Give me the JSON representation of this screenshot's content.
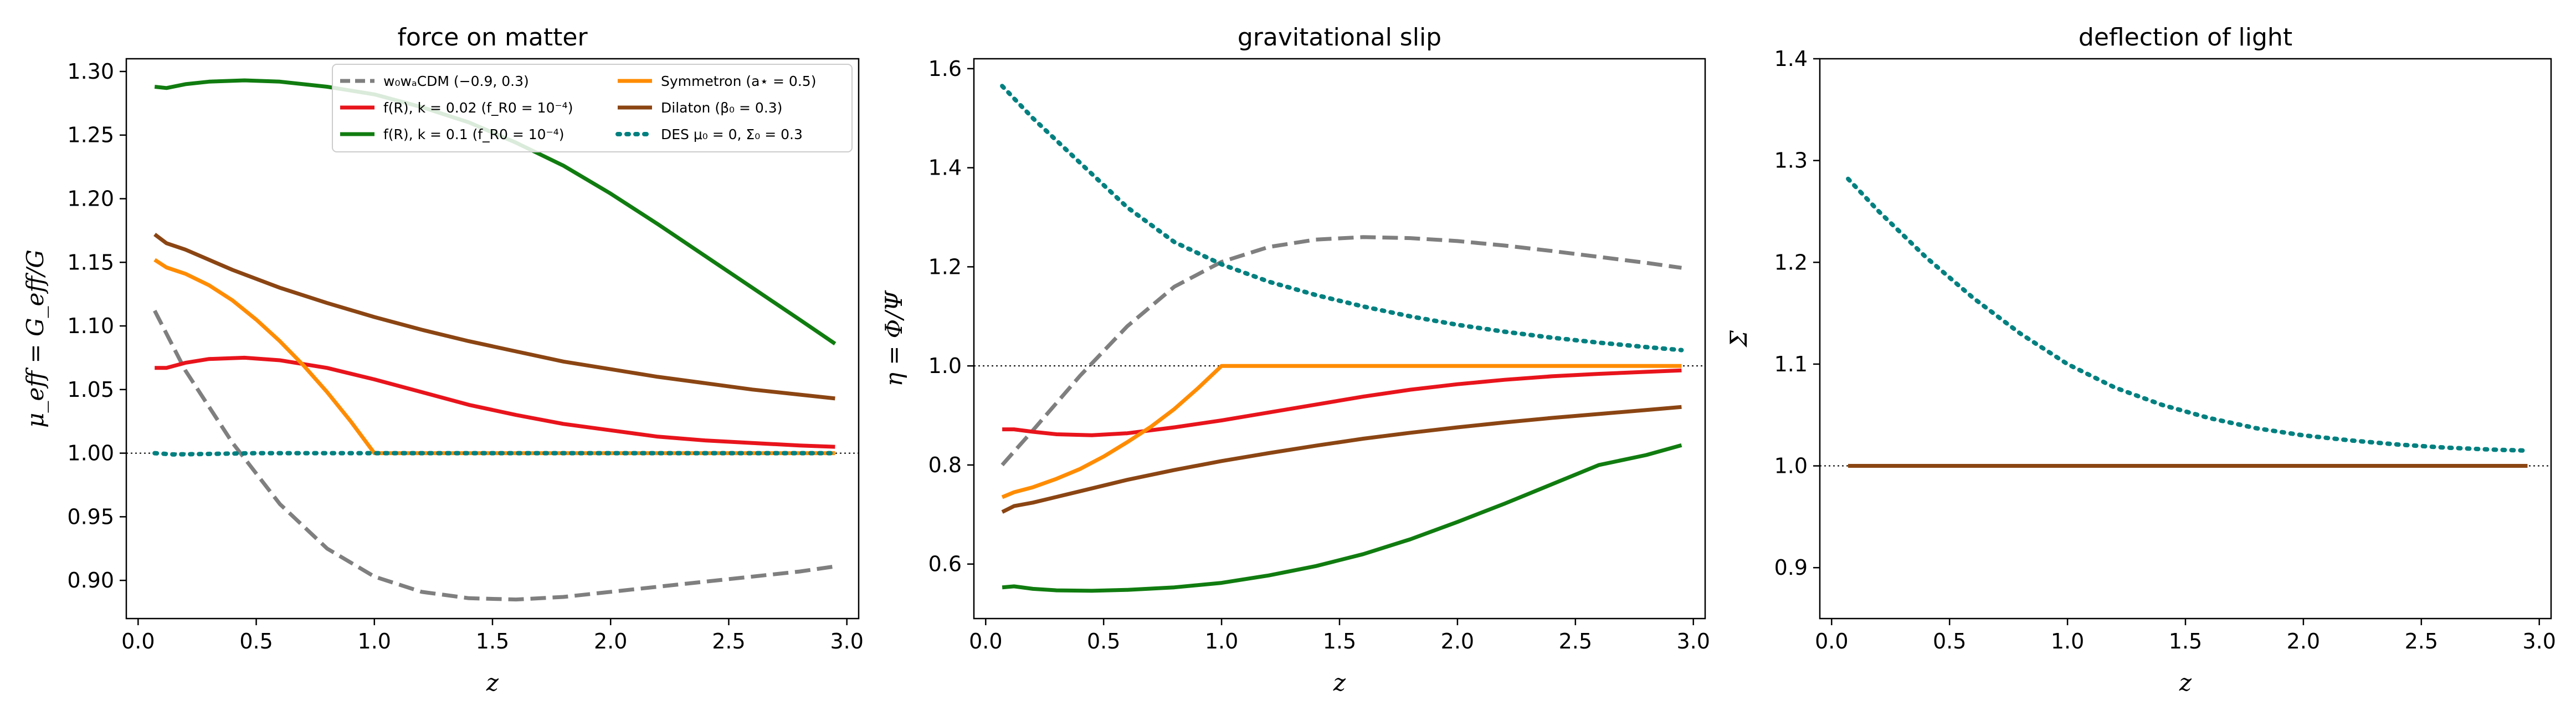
{
  "chart_data": [
    {
      "type": "line",
      "title": "force on matter",
      "xlabel": "z",
      "ylabel": "μ_eff = G_eff/G",
      "xlim": [
        -0.05,
        3.05
      ],
      "ylim": [
        0.87,
        1.31
      ],
      "xticks": [
        "0.0",
        "0.5",
        "1.0",
        "1.5",
        "2.0",
        "2.5",
        "3.0"
      ],
      "yticks": [
        "0.90",
        "0.95",
        "1.00",
        "1.05",
        "1.10",
        "1.15",
        "1.20",
        "1.25",
        "1.30"
      ],
      "reference_line": 1.0,
      "legend_placement": "top-right",
      "legend": [
        "w₀wₐCDM (−0.9, 0.3)",
        "f(R), k = 0.02 (f_R0 = 10⁻⁴)",
        "f(R), k = 0.1 (f_R0 = 10⁻⁴)",
        "Symmetron (a⋆ = 0.5)",
        "Dilaton (β₀ = 0.3)",
        "DES μ₀ = 0, Σ₀ = 0.3"
      ],
      "series": [
        {
          "name": "w₀wₐCDM (−0.9, 0.3)",
          "color": "#7f7f7f",
          "style": "dashed",
          "x": [
            0.07,
            0.2,
            0.4,
            0.6,
            0.8,
            1.0,
            1.2,
            1.4,
            1.6,
            1.8,
            2.0,
            2.2,
            2.4,
            2.6,
            2.8,
            2.95
          ],
          "y": [
            1.112,
            1.065,
            1.008,
            0.96,
            0.925,
            0.903,
            0.891,
            0.886,
            0.885,
            0.887,
            0.891,
            0.895,
            0.899,
            0.903,
            0.907,
            0.911
          ]
        },
        {
          "name": "f(R), k = 0.02 (f_R0 = 10⁻⁴)",
          "color": "#e8141c",
          "style": "solid",
          "x": [
            0.07,
            0.12,
            0.2,
            0.3,
            0.45,
            0.6,
            0.8,
            1.0,
            1.2,
            1.4,
            1.6,
            1.8,
            2.0,
            2.2,
            2.4,
            2.6,
            2.8,
            2.95
          ],
          "y": [
            1.067,
            1.067,
            1.071,
            1.074,
            1.075,
            1.073,
            1.067,
            1.058,
            1.048,
            1.038,
            1.03,
            1.023,
            1.018,
            1.013,
            1.01,
            1.008,
            1.006,
            1.005
          ]
        },
        {
          "name": "f(R), k = 0.1 (f_R0 = 10⁻⁴)",
          "color": "#107c10",
          "style": "solid",
          "x": [
            0.07,
            0.12,
            0.2,
            0.3,
            0.45,
            0.6,
            0.8,
            1.0,
            1.2,
            1.4,
            1.6,
            1.8,
            2.0,
            2.2,
            2.4,
            2.6,
            2.8,
            2.95
          ],
          "y": [
            1.288,
            1.287,
            1.29,
            1.292,
            1.293,
            1.292,
            1.288,
            1.282,
            1.272,
            1.26,
            1.244,
            1.226,
            1.204,
            1.18,
            1.155,
            1.13,
            1.105,
            1.086
          ]
        },
        {
          "name": "Symmetron (a⋆ = 0.5)",
          "color": "#ff8c00",
          "style": "solid",
          "x": [
            0.07,
            0.12,
            0.2,
            0.3,
            0.4,
            0.5,
            0.6,
            0.7,
            0.8,
            0.9,
            1.0,
            1.5,
            2.0,
            2.5,
            2.95
          ],
          "y": [
            1.152,
            1.146,
            1.141,
            1.132,
            1.12,
            1.105,
            1.088,
            1.069,
            1.048,
            1.025,
            1.0,
            1.0,
            1.0,
            1.0,
            1.0
          ]
        },
        {
          "name": "Dilaton (β₀ = 0.3)",
          "color": "#8b4513",
          "style": "solid",
          "x": [
            0.07,
            0.12,
            0.2,
            0.4,
            0.6,
            0.8,
            1.0,
            1.2,
            1.4,
            1.6,
            1.8,
            2.0,
            2.2,
            2.4,
            2.6,
            2.8,
            2.95
          ],
          "y": [
            1.172,
            1.165,
            1.16,
            1.144,
            1.13,
            1.118,
            1.107,
            1.097,
            1.088,
            1.08,
            1.072,
            1.066,
            1.06,
            1.055,
            1.05,
            1.046,
            1.043
          ]
        },
        {
          "name": "DES μ₀ = 0, Σ₀ = 0.3",
          "color": "#008080",
          "style": "dotted",
          "x": [
            0.07,
            0.15,
            0.5,
            1.0,
            1.5,
            2.0,
            2.5,
            2.95
          ],
          "y": [
            1.0,
            0.999,
            1.0,
            1.0,
            1.0,
            1.0,
            1.0,
            1.0
          ]
        }
      ]
    },
    {
      "type": "line",
      "title": "gravitational slip",
      "xlabel": "z",
      "ylabel": "η = Φ/Ψ",
      "xlim": [
        -0.05,
        3.05
      ],
      "ylim": [
        0.49,
        1.62
      ],
      "xticks": [
        "0.0",
        "0.5",
        "1.0",
        "1.5",
        "2.0",
        "2.5",
        "3.0"
      ],
      "yticks": [
        "0.6",
        "0.8",
        "1.0",
        "1.2",
        "1.4",
        "1.6"
      ],
      "reference_line": 1.0,
      "series": [
        {
          "name": "w₀wₐCDM (−0.9, 0.3)",
          "color": "#7f7f7f",
          "style": "dashed",
          "x": [
            0.07,
            0.2,
            0.4,
            0.6,
            0.8,
            1.0,
            1.2,
            1.4,
            1.6,
            1.8,
            2.0,
            2.2,
            2.4,
            2.6,
            2.8,
            2.95
          ],
          "y": [
            0.8,
            0.87,
            0.98,
            1.08,
            1.16,
            1.21,
            1.24,
            1.255,
            1.26,
            1.258,
            1.252,
            1.243,
            1.232,
            1.22,
            1.208,
            1.198
          ]
        },
        {
          "name": "f(R), k = 0.02 (f_R0 = 10⁻⁴)",
          "color": "#e8141c",
          "style": "solid",
          "x": [
            0.07,
            0.12,
            0.2,
            0.3,
            0.45,
            0.6,
            0.8,
            1.0,
            1.2,
            1.4,
            1.6,
            1.8,
            2.0,
            2.2,
            2.4,
            2.6,
            2.8,
            2.95
          ],
          "y": [
            0.872,
            0.872,
            0.867,
            0.862,
            0.86,
            0.864,
            0.876,
            0.89,
            0.906,
            0.922,
            0.938,
            0.952,
            0.963,
            0.972,
            0.979,
            0.984,
            0.988,
            0.991
          ]
        },
        {
          "name": "f(R), k = 0.1 (f_R0 = 10⁻⁴)",
          "color": "#107c10",
          "style": "solid",
          "x": [
            0.07,
            0.12,
            0.2,
            0.3,
            0.45,
            0.6,
            0.8,
            1.0,
            1.2,
            1.4,
            1.6,
            1.8,
            2.0,
            2.2,
            2.4,
            2.6,
            2.8,
            2.95
          ],
          "y": [
            0.553,
            0.555,
            0.55,
            0.547,
            0.546,
            0.548,
            0.553,
            0.562,
            0.577,
            0.596,
            0.62,
            0.65,
            0.685,
            0.722,
            0.761,
            0.8,
            0.82,
            0.84
          ]
        },
        {
          "name": "Symmetron (a⋆ = 0.5)",
          "color": "#ff8c00",
          "style": "solid",
          "x": [
            0.07,
            0.12,
            0.2,
            0.3,
            0.4,
            0.5,
            0.6,
            0.7,
            0.8,
            0.9,
            1.0,
            1.5,
            2.0,
            2.5,
            2.95
          ],
          "y": [
            0.735,
            0.745,
            0.755,
            0.772,
            0.792,
            0.817,
            0.846,
            0.877,
            0.913,
            0.955,
            1.0,
            1.0,
            1.0,
            1.0,
            1.0
          ]
        },
        {
          "name": "Dilaton (β₀ = 0.3)",
          "color": "#8b4513",
          "style": "solid",
          "x": [
            0.07,
            0.12,
            0.2,
            0.4,
            0.6,
            0.8,
            1.0,
            1.2,
            1.4,
            1.6,
            1.8,
            2.0,
            2.2,
            2.4,
            2.6,
            2.8,
            2.95
          ],
          "y": [
            0.705,
            0.717,
            0.724,
            0.747,
            0.77,
            0.79,
            0.808,
            0.824,
            0.839,
            0.853,
            0.865,
            0.876,
            0.886,
            0.895,
            0.903,
            0.911,
            0.917
          ]
        },
        {
          "name": "DES μ₀ = 0, Σ₀ = 0.3",
          "color": "#008080",
          "style": "dotted",
          "x": [
            0.07,
            0.2,
            0.4,
            0.6,
            0.8,
            1.0,
            1.2,
            1.4,
            1.6,
            1.8,
            2.0,
            2.2,
            2.4,
            2.6,
            2.8,
            2.95
          ],
          "y": [
            1.565,
            1.5,
            1.41,
            1.32,
            1.25,
            1.205,
            1.17,
            1.143,
            1.12,
            1.1,
            1.083,
            1.069,
            1.057,
            1.047,
            1.038,
            1.032
          ]
        }
      ]
    },
    {
      "type": "line",
      "title": "deflection of light",
      "xlabel": "z",
      "ylabel": "Σ",
      "xlim": [
        -0.05,
        3.05
      ],
      "ylim": [
        0.85,
        1.4
      ],
      "xticks": [
        "0.0",
        "0.5",
        "1.0",
        "1.5",
        "2.0",
        "2.5",
        "3.0"
      ],
      "yticks": [
        "0.9",
        "1.0",
        "1.1",
        "1.2",
        "1.3",
        "1.4"
      ],
      "reference_line": 1.0,
      "series": [
        {
          "name": "w₀wₐCDM (−0.9, 0.3)",
          "color": "#7f7f7f",
          "style": "dashed",
          "x": [
            0.07,
            2.95
          ],
          "y": [
            1.0,
            1.0
          ]
        },
        {
          "name": "f(R), k = 0.02 (f_R0 = 10⁻⁴)",
          "color": "#e8141c",
          "style": "solid",
          "x": [
            0.07,
            2.95
          ],
          "y": [
            1.0,
            1.0
          ]
        },
        {
          "name": "f(R), k = 0.1 (f_R0 = 10⁻⁴)",
          "color": "#107c10",
          "style": "solid",
          "x": [
            0.07,
            2.95
          ],
          "y": [
            1.0,
            1.0
          ]
        },
        {
          "name": "Symmetron (a⋆ = 0.5)",
          "color": "#ff8c00",
          "style": "solid",
          "x": [
            0.07,
            2.95
          ],
          "y": [
            1.0,
            1.0
          ]
        },
        {
          "name": "Dilaton (β₀ = 0.3)",
          "color": "#8b4513",
          "style": "solid",
          "x": [
            0.07,
            2.95
          ],
          "y": [
            1.0,
            1.0
          ]
        },
        {
          "name": "DES μ₀ = 0, Σ₀ = 0.3",
          "color": "#008080",
          "style": "dotted",
          "x": [
            0.07,
            0.2,
            0.4,
            0.6,
            0.8,
            1.0,
            1.2,
            1.4,
            1.6,
            1.8,
            2.0,
            2.2,
            2.4,
            2.6,
            2.8,
            2.95
          ],
          "y": [
            1.282,
            1.25,
            1.205,
            1.165,
            1.13,
            1.1,
            1.077,
            1.06,
            1.047,
            1.037,
            1.03,
            1.025,
            1.021,
            1.018,
            1.016,
            1.015
          ]
        }
      ]
    }
  ]
}
